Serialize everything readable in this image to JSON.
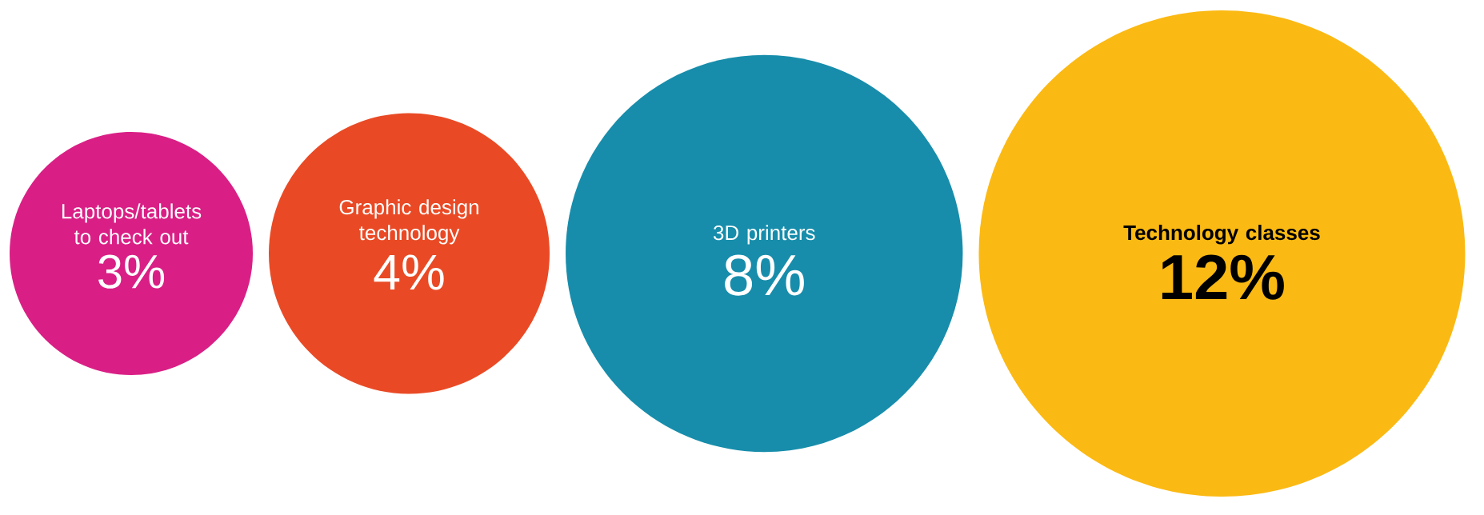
{
  "chart_data": {
    "type": "other",
    "categories": [
      "Laptops/tablets to check out",
      "Graphic design technology",
      "3D printers",
      "Technology classes"
    ],
    "values": [
      3,
      4,
      8,
      12
    ],
    "value_labels": [
      "3%",
      "4%",
      "8%",
      "12%"
    ],
    "colors": [
      "#d91f85",
      "#e94a25",
      "#178dab",
      "#fbb913"
    ]
  }
}
